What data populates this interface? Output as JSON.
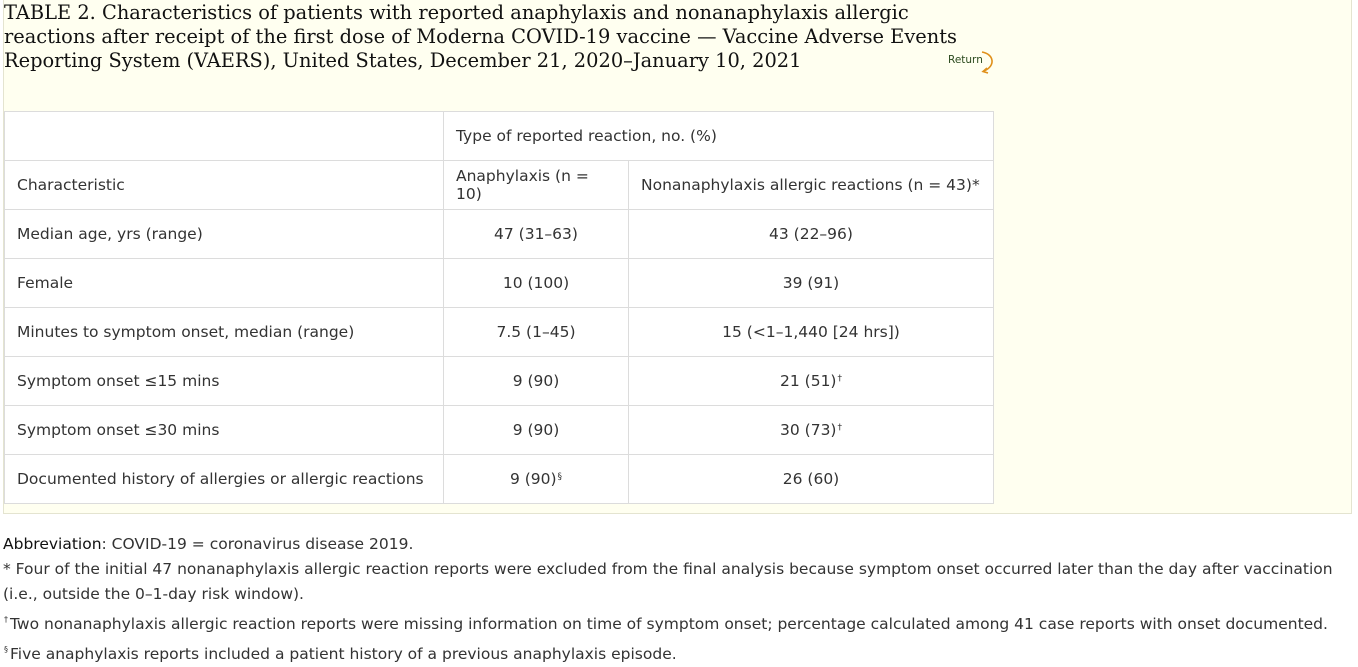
{
  "title": "TABLE 2. Characteristics of patients with reported anaphylaxis and nonanaphylaxis allergic reactions after receipt of the first dose of Moderna COVID-19 vaccine — Vaccine Adverse Events Reporting System (VAERS), United States, December 21, 2020–January 10, 2021",
  "return_label": "Return",
  "table": {
    "group_header": "Type of reported reaction, no. (%)",
    "col_characteristic": "Characteristic",
    "col_anaphylaxis": "Anaphylaxis (n = 10)",
    "col_nonanaphylaxis": "Nonanaphylaxis allergic reactions (n = 43)*",
    "rows": [
      {
        "label": "Median age, yrs (range)",
        "anaphylaxis": "47 (31–63)",
        "anaphylaxis_mark": "",
        "nonanaphylaxis": "43 (22–96)",
        "nonanaphylaxis_mark": ""
      },
      {
        "label": "Female",
        "anaphylaxis": "10 (100)",
        "anaphylaxis_mark": "",
        "nonanaphylaxis": "39 (91)",
        "nonanaphylaxis_mark": ""
      },
      {
        "label": "Minutes to symptom onset, median (range)",
        "anaphylaxis": "7.5 (1–45)",
        "anaphylaxis_mark": "",
        "nonanaphylaxis": "15 (<1–1,440 [24 hrs])",
        "nonanaphylaxis_mark": ""
      },
      {
        "label": "Symptom onset ≤15 mins",
        "anaphylaxis": "9 (90)",
        "anaphylaxis_mark": "",
        "nonanaphylaxis": "21 (51)",
        "nonanaphylaxis_mark": "†"
      },
      {
        "label": "Symptom onset ≤30 mins",
        "anaphylaxis": "9 (90)",
        "anaphylaxis_mark": "",
        "nonanaphylaxis": "30 (73)",
        "nonanaphylaxis_mark": "†"
      },
      {
        "label": "Documented history of allergies or allergic reactions",
        "anaphylaxis": "9 (90)",
        "anaphylaxis_mark": "§",
        "nonanaphylaxis": "26 (60)",
        "nonanaphylaxis_mark": ""
      }
    ]
  },
  "footnotes": {
    "abbreviation_label": "Abbreviation",
    "abbreviation_text": ": COVID-19 = coronavirus disease 2019.",
    "star": "* Four of the initial 47 nonanaphylaxis allergic reaction reports were excluded from the final analysis because symptom onset occurred later than the day after vaccination (i.e., outside the 0–1-day risk window).",
    "dagger_mark": "†",
    "dagger": "Two nonanaphylaxis allergic reaction reports were missing information on time of symptom onset; percentage calculated among 41 case reports with onset documented.",
    "section_mark": "§",
    "section": "Five anaphylaxis reports included a patient history of a previous anaphylaxis episode."
  }
}
